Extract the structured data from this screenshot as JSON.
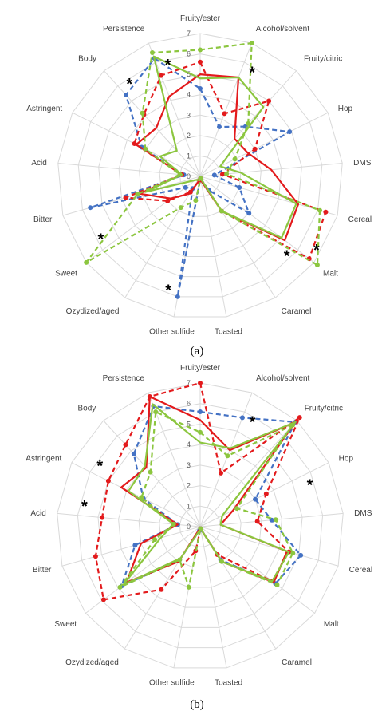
{
  "chart_data": [
    {
      "type": "radar",
      "panel_label": "(a)",
      "categories": [
        "Fruity/ester",
        "Alcohol/solvent",
        "Fruity/citric",
        "Hop",
        "DMS",
        "Cereal",
        "Malt",
        "Caramel",
        "Toasted",
        "Other sulfide",
        "Ozydized/aged",
        "Sweet",
        "Bitter",
        "Acid",
        "Astringent",
        "Body",
        "Persistence"
      ],
      "rlim": [
        0,
        7
      ],
      "ticks": [
        0,
        1,
        2,
        3,
        4,
        5,
        6,
        7
      ],
      "grid": true,
      "series": [
        {
          "color": "#4472C4",
          "dashed": true,
          "markers": true,
          "values": [
            4.3,
            2.6,
            3.3,
            4.9,
            0.7,
            2.0,
            3.0,
            0.8,
            0.1,
            6.0,
            0.7,
            0.9,
            5.6,
            0.8,
            3.2,
            5.4,
            6.2
          ]
        },
        {
          "color": "#E31A1C",
          "dashed": true,
          "markers": true,
          "values": [
            5.6,
            3.3,
            5.0,
            3.0,
            1.1,
            6.4,
            6.7,
            2.0,
            0.1,
            0.2,
            0.9,
            2.0,
            3.8,
            0.9,
            3.6,
            4.1,
            5.3
          ]
        },
        {
          "color": "#E31A1C",
          "dashed": false,
          "markers": false,
          "values": [
            5.0,
            5.2,
            2.5,
            2.6,
            3.5,
            5.0,
            5.2,
            2.0,
            0.2,
            0.2,
            1.0,
            1.8,
            3.1,
            0.9,
            3.5,
            3.2,
            4.2
          ]
        },
        {
          "color": "#8CC63F",
          "dashed": true,
          "markers": true,
          "values": [
            6.2,
            7.0,
            3.5,
            1.9,
            1.3,
            6.1,
            7.2,
            2.0,
            0.1,
            1.2,
            1.8,
            7.0,
            3.2,
            1.0,
            3.0,
            4.2,
            6.5
          ]
        },
        {
          "color": "#8CC63F",
          "dashed": false,
          "markers": false,
          "values": [
            4.8,
            5.2,
            4.6,
            1.1,
            2.0,
            4.9,
            5.0,
            2.0,
            0.1,
            0.2,
            0.2,
            0.3,
            2.8,
            0.9,
            2.2,
            1.7,
            6.3
          ]
        }
      ],
      "asterisks": [
        "Alcohol/solvent",
        "Malt",
        "Malt",
        "Other sulfide",
        "Sweet",
        "Body",
        "Persistence"
      ]
    },
    {
      "type": "radar",
      "panel_label": "(b)",
      "categories": [
        "Fruity/ester",
        "Alcohol/solvent",
        "Fruity/citric",
        "Hop",
        "DMS",
        "Cereal",
        "Malt",
        "Caramel",
        "Toasted",
        "Other sulfide",
        "Ozydized/aged",
        "Sweet",
        "Bitter",
        "Acid",
        "Astringent",
        "Body",
        "Persistence"
      ],
      "rlim": [
        0,
        7
      ],
      "ticks": [
        0,
        1,
        2,
        3,
        4,
        5,
        6,
        7
      ],
      "grid": true,
      "series": [
        {
          "color": "#4472C4",
          "dashed": true,
          "markers": true,
          "values": [
            5.6,
            5.7,
            6.9,
            3.0,
            3.5,
            5.1,
            4.6,
            1.9,
            0.1,
            0.2,
            1.9,
            4.8,
            3.3,
            1.1,
            3.1,
            4.8,
            6.3
          ]
        },
        {
          "color": "#E31A1C",
          "dashed": true,
          "markers": true,
          "values": [
            7.0,
            2.8,
            7.2,
            3.6,
            2.8,
            4.5,
            4.4,
            1.6,
            0.1,
            1.2,
            3.6,
            5.9,
            5.3,
            4.8,
            5.0,
            5.4,
            6.8
          ]
        },
        {
          "color": "#E31A1C",
          "dashed": false,
          "markers": false,
          "values": [
            5.2,
            4.0,
            6.9,
            1.8,
            1.0,
            4.4,
            4.5,
            2.0,
            0.1,
            0.1,
            2.0,
            4.5,
            3.0,
            1.1,
            4.3,
            3.9,
            6.8
          ]
        },
        {
          "color": "#8CC63F",
          "dashed": true,
          "markers": true,
          "values": [
            4.6,
            3.7,
            6.7,
            2.0,
            3.7,
            4.7,
            4.7,
            2.0,
            0.1,
            3.0,
            1.9,
            4.9,
            2.3,
            1.3,
            3.2,
            3.6,
            6.0
          ]
        },
        {
          "color": "#8CC63F",
          "dashed": false,
          "markers": false,
          "values": [
            4.1,
            4.1,
            6.9,
            1.2,
            1.0,
            4.5,
            4.4,
            2.0,
            0.1,
            0.2,
            1.8,
            4.7,
            2.0,
            1.3,
            3.9,
            4.0,
            6.4
          ]
        }
      ],
      "asterisks": [
        "Alcohol/solvent",
        "Hop",
        "Astringent",
        "Acid"
      ]
    }
  ]
}
